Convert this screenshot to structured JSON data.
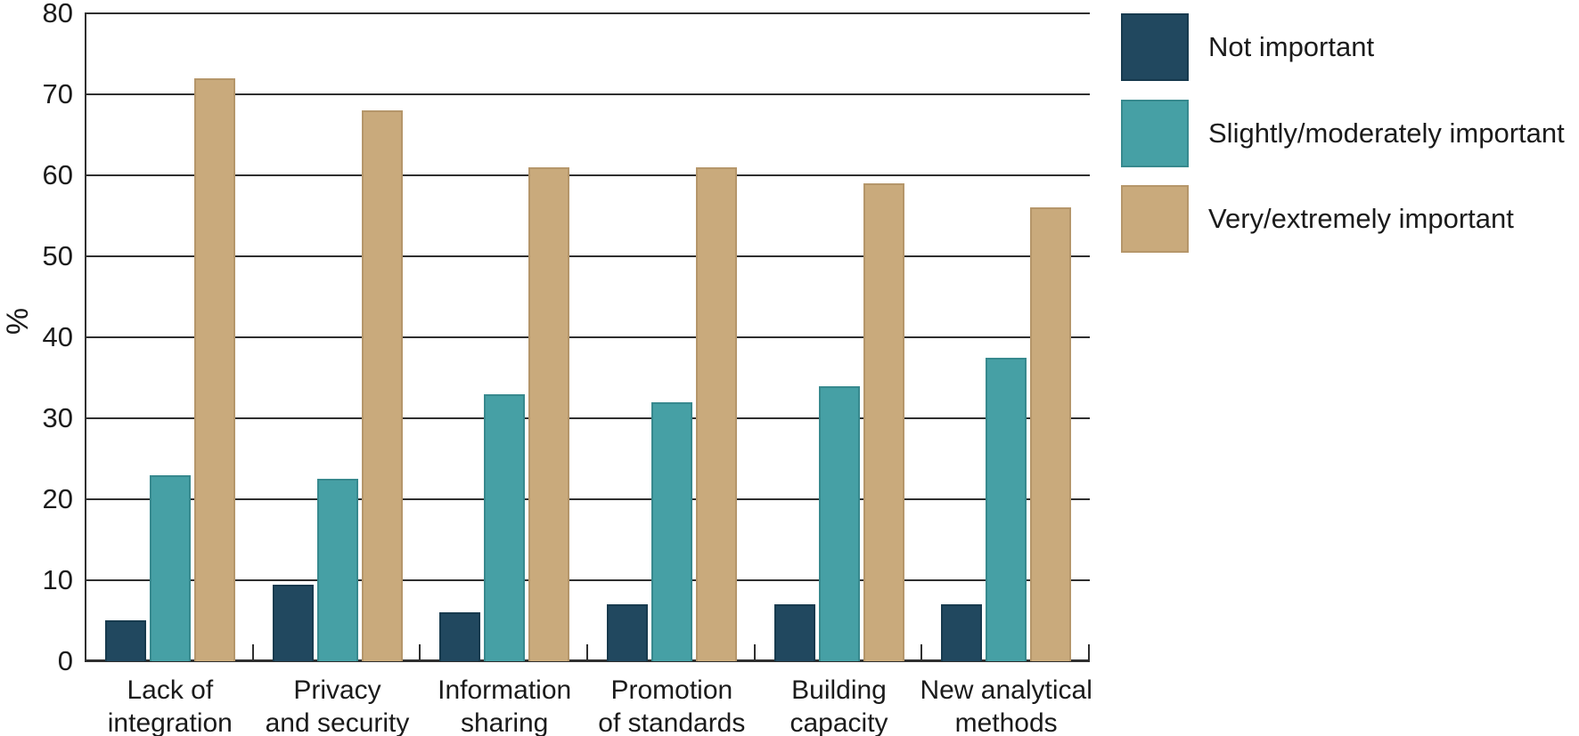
{
  "chart_data": {
    "type": "bar",
    "title": "",
    "xlabel": "",
    "ylabel": "%",
    "ylim": [
      0,
      80
    ],
    "yticks": [
      0,
      10,
      20,
      30,
      40,
      50,
      60,
      70,
      80
    ],
    "grid": true,
    "legend_position": "top-right",
    "axis_color": "#2f2f2f",
    "text_color": "#1b1b1b",
    "categories": [
      {
        "line1": "Lack of",
        "line2": "integration"
      },
      {
        "line1": "Privacy",
        "line2": "and security"
      },
      {
        "line1": "Information",
        "line2": "sharing"
      },
      {
        "line1": "Promotion",
        "line2": "of standards"
      },
      {
        "line1": "Building",
        "line2": "capacity"
      },
      {
        "line1": "New analytical",
        "line2": "methods"
      }
    ],
    "series": [
      {
        "name": "Not important",
        "color": "#21485f",
        "border_color": "#173a4e",
        "values": [
          5,
          9.5,
          6,
          7,
          7,
          7
        ]
      },
      {
        "name": "Slightly/moderately important",
        "color": "#46a0a5",
        "border_color": "#37898e",
        "values": [
          23,
          22.5,
          33,
          32,
          34,
          37.5
        ]
      },
      {
        "name": "Very/extremely important",
        "color": "#c9aa7c",
        "border_color": "#b5966a",
        "values": [
          72,
          68,
          61,
          61,
          59,
          56
        ]
      }
    ]
  }
}
